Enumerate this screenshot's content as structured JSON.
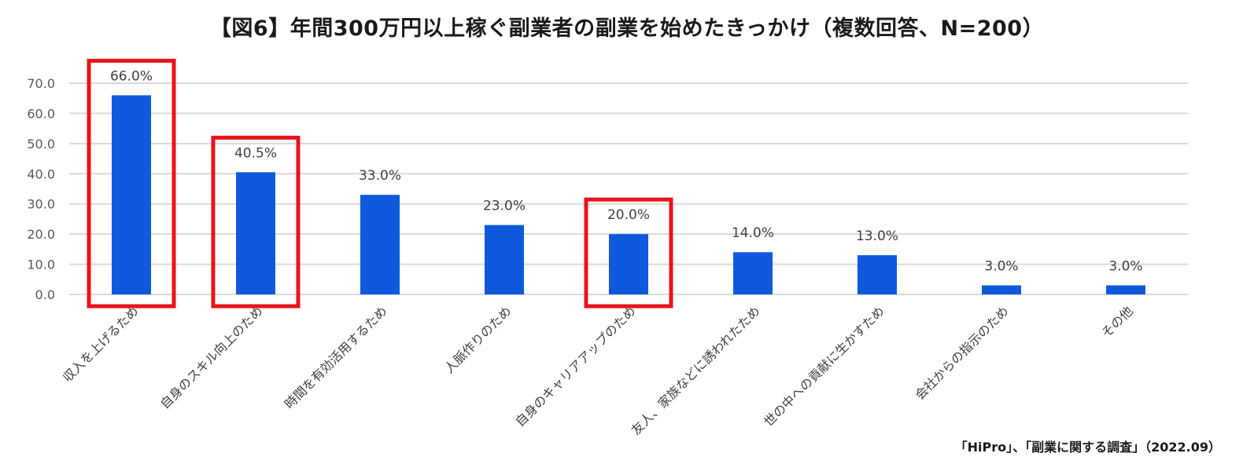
{
  "title": "【図6】年間300万円以上稼ぐ副業者の副業を始めたきっかけ（複数回答、N=200）",
  "source": "「HiPro」、「副業に関する調査」（2022.09）",
  "colors": {
    "bar": "#1059DC",
    "highlight": "#E8141A",
    "grid": "#D9D9D9"
  },
  "chart_data": {
    "type": "bar",
    "categories": [
      "収入を上げるため",
      "自身のスキル向上のため",
      "時間を有効活用するため",
      "人脈作りのため",
      "自身のキャリアアップのため",
      "友人、家族などに誘われたため",
      "世の中への貢献に生かすため",
      "会社からの指示のため",
      "その他"
    ],
    "values": [
      66.0,
      40.5,
      33.0,
      23.0,
      20.0,
      14.0,
      13.0,
      3.0,
      3.0
    ],
    "data_labels": [
      "66.0%",
      "40.5%",
      "33.0%",
      "23.0%",
      "20.0%",
      "14.0%",
      "13.0%",
      "3.0%",
      "3.0%"
    ],
    "ylim": [
      0,
      70
    ],
    "yticks": [
      "0.0",
      "10.0",
      "20.0",
      "30.0",
      "40.0",
      "50.0",
      "60.0",
      "70.0"
    ],
    "grid": true,
    "highlighted_categories": [
      "収入を上げるため",
      "自身のスキル向上のため",
      "自身のキャリアアップのため"
    ]
  }
}
